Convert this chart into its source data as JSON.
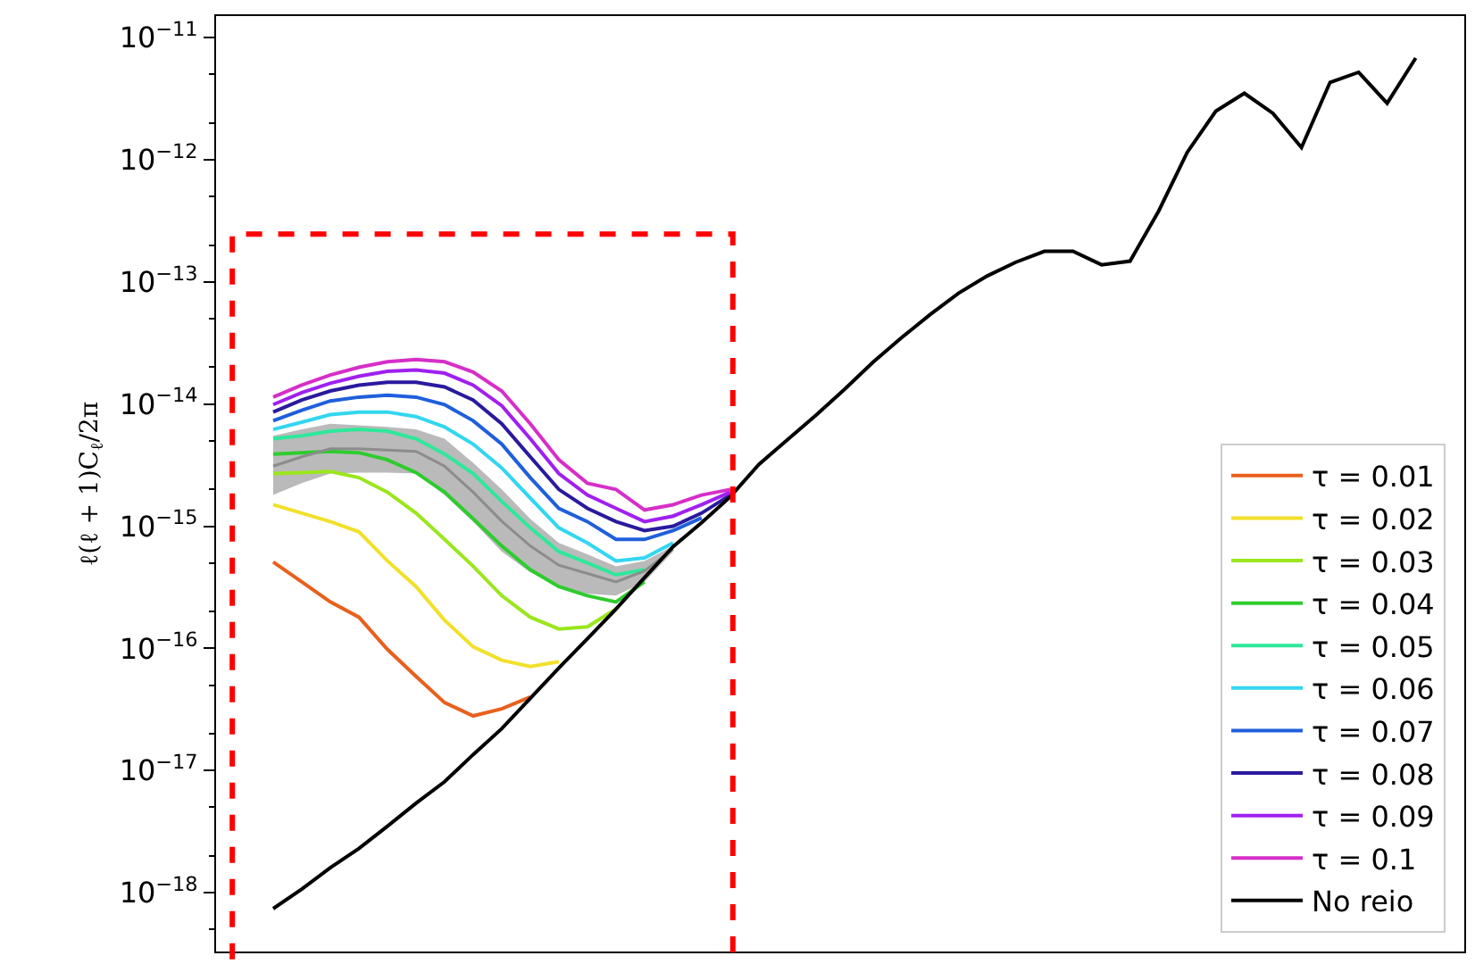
{
  "chart_data": {
    "type": "line",
    "ylabel": "ℓ(ℓ + 1)C$_{ℓ}$/2π",
    "log": "y",
    "legend": "bottom right",
    "tick_labels": "y",
    "categories": [
      null,
      null,
      null,
      null,
      null,
      null,
      null,
      null,
      null,
      null,
      null,
      null,
      null,
      null,
      null,
      null,
      null,
      null,
      null,
      null,
      null,
      null,
      null,
      null,
      null,
      null,
      null,
      null,
      null,
      null,
      null,
      null,
      null,
      null,
      null,
      null,
      null,
      null,
      null,
      null,
      null
    ],
    "ylim": [
      3.3e-19,
      1.5e-11
    ],
    "yticks": [
      {
        "value": 1e-18,
        "label": "10$^{−18}$"
      },
      {
        "value": 1e-17,
        "label": "10$^{−17}$"
      },
      {
        "value": 1e-16,
        "label": "10$^{−16}$"
      },
      {
        "value": 1e-15,
        "label": "10$^{−15}$"
      },
      {
        "value": 1e-14,
        "label": "10$^{−14}$"
      },
      {
        "value": 1e-13,
        "label": "10$^{−13}$"
      },
      {
        "value": 1e-12,
        "label": "10$^{−12}$"
      },
      {
        "value": 1e-11,
        "label": "10$^{−11}$"
      }
    ],
    "series": [
      {
        "color": "#8c8c8c",
        "values": [
          3.1e-15,
          3.7e-15,
          4.3e-15,
          4.3e-15,
          4.2e-15,
          4.1e-15,
          3.1e-15,
          1.9e-15,
          1.1e-15,
          6.9e-16,
          4.8e-16,
          4.1e-16,
          3.5e-16,
          4.3e-16,
          6.5e-16,
          null,
          null,
          null,
          null,
          null,
          null,
          null,
          null,
          null,
          null,
          null,
          null,
          null,
          null,
          null,
          null,
          null,
          null,
          null,
          null,
          null,
          null,
          null,
          null,
          null,
          null
        ],
        "lower": [
          1.8e-15,
          2.25e-15,
          2.7e-15,
          2.75e-15,
          2.75e-15,
          2.7e-15,
          1.8e-15,
          1.09e-15,
          6.2e-16,
          4.2e-16,
          3.2e-16,
          2.8e-16,
          2.7e-16,
          3.5e-16,
          6.2e-16,
          null,
          null,
          null,
          null,
          null,
          null,
          null,
          null,
          null,
          null,
          null,
          null,
          null,
          null,
          null,
          null,
          null,
          null,
          null,
          null,
          null,
          null,
          null,
          null,
          null,
          null
        ],
        "upper": [
          5.5e-15,
          6.2e-15,
          6.9e-15,
          6.7e-15,
          6.5e-15,
          6.2e-15,
          5.2e-15,
          3.3e-15,
          2e-15,
          1.15e-15,
          7.3e-16,
          5.9e-16,
          4.7e-16,
          5.2e-16,
          6.9e-16,
          null,
          null,
          null,
          null,
          null,
          null,
          null,
          null,
          null,
          null,
          null,
          null,
          null,
          null,
          null,
          null,
          null,
          null,
          null,
          null,
          null,
          null,
          null,
          null,
          null,
          null
        ]
      },
      {
        "name": "τ = 0.01",
        "color": "#e8601c",
        "values": [
          5.1e-16,
          3.5e-16,
          2.4e-16,
          1.8e-16,
          9.8e-17,
          5.9e-17,
          3.6e-17,
          2.8e-17,
          3.2e-17,
          4e-17,
          null,
          null,
          null,
          null,
          null,
          null,
          null,
          null,
          null,
          null,
          null,
          null,
          null,
          null,
          null,
          null,
          null,
          null,
          null,
          null,
          null,
          null,
          null,
          null,
          null,
          null,
          null,
          null,
          null,
          null,
          null
        ]
      },
      {
        "name": "τ = 0.02",
        "color": "#f2e02a",
        "values": [
          1.5e-15,
          1.28e-15,
          1.09e-15,
          9e-16,
          5.2e-16,
          3.2e-16,
          1.7e-16,
          1.03e-16,
          8e-17,
          7.1e-17,
          7.8e-17,
          null,
          null,
          null,
          null,
          null,
          null,
          null,
          null,
          null,
          null,
          null,
          null,
          null,
          null,
          null,
          null,
          null,
          null,
          null,
          null,
          null,
          null,
          null,
          null,
          null,
          null,
          null,
          null,
          null,
          null
        ]
      },
      {
        "name": "τ = 0.03",
        "color": "#9be61e",
        "values": [
          2.7e-15,
          2.75e-15,
          2.8e-15,
          2.5e-15,
          1.9e-15,
          1.28e-15,
          7.8e-16,
          4.7e-16,
          2.7e-16,
          1.8e-16,
          1.44e-16,
          1.5e-16,
          2.1e-16,
          null,
          null,
          null,
          null,
          null,
          null,
          null,
          null,
          null,
          null,
          null,
          null,
          null,
          null,
          null,
          null,
          null,
          null,
          null,
          null,
          null,
          null,
          null,
          null,
          null,
          null,
          null,
          null
        ]
      },
      {
        "name": "τ = 0.04",
        "color": "#2ecc2e",
        "values": [
          3.9e-15,
          4e-15,
          4.1e-15,
          4e-15,
          3.5e-15,
          2.75e-15,
          1.9e-15,
          1.15e-15,
          6.9e-16,
          4.4e-16,
          3.2e-16,
          2.7e-16,
          2.4e-16,
          3.5e-16,
          null,
          null,
          null,
          null,
          null,
          null,
          null,
          null,
          null,
          null,
          null,
          null,
          null,
          null,
          null,
          null,
          null,
          null,
          null,
          null,
          null,
          null,
          null,
          null,
          null,
          null,
          null
        ]
      },
      {
        "name": "τ = 0.05",
        "color": "#2ee89a",
        "values": [
          5.2e-15,
          5.5e-15,
          6e-15,
          6.2e-15,
          6e-15,
          5.2e-15,
          3.9e-15,
          2.7e-15,
          1.6e-15,
          9.7e-16,
          6.2e-16,
          5e-16,
          4e-16,
          4.4e-16,
          null,
          null,
          null,
          null,
          null,
          null,
          null,
          null,
          null,
          null,
          null,
          null,
          null,
          null,
          null,
          null,
          null,
          null,
          null,
          null,
          null,
          null,
          null,
          null,
          null,
          null,
          null
        ]
      },
      {
        "name": "τ = 0.06",
        "color": "#33d6f0",
        "values": [
          6.2e-15,
          7.1e-15,
          8.2e-15,
          8.6e-15,
          8.6e-15,
          7.9e-15,
          6.5e-15,
          4.7e-15,
          3e-15,
          1.7e-15,
          9.7e-16,
          7.3e-16,
          5.2e-16,
          5.5e-16,
          7.3e-16,
          null,
          null,
          null,
          null,
          null,
          null,
          null,
          null,
          null,
          null,
          null,
          null,
          null,
          null,
          null,
          null,
          null,
          null,
          null,
          null,
          null,
          null,
          null,
          null,
          null,
          null
        ]
      },
      {
        "name": "τ = 0.07",
        "color": "#1f5fdc",
        "values": [
          7.3e-15,
          8.9e-15,
          1.06e-14,
          1.14e-14,
          1.18e-14,
          1.14e-14,
          9.9e-15,
          7.3e-15,
          4.7e-15,
          2.5e-15,
          1.4e-15,
          1.09e-15,
          7.8e-16,
          7.8e-16,
          9.2e-16,
          1.17e-15,
          null,
          null,
          null,
          null,
          null,
          null,
          null,
          null,
          null,
          null,
          null,
          null,
          null,
          null,
          null,
          null,
          null,
          null,
          null,
          null,
          null,
          null,
          null,
          null,
          null
        ]
      },
      {
        "name": "τ = 0.08",
        "color": "#2a1a9e",
        "values": [
          8.6e-15,
          1.08e-14,
          1.28e-14,
          1.43e-14,
          1.51e-14,
          1.51e-14,
          1.38e-14,
          1.08e-14,
          6.9e-15,
          3.7e-15,
          2e-15,
          1.4e-15,
          1.09e-15,
          9.2e-16,
          1e-15,
          1.28e-15,
          1.8e-15,
          null,
          null,
          null,
          null,
          null,
          null,
          null,
          null,
          null,
          null,
          null,
          null,
          null,
          null,
          null,
          null,
          null,
          null,
          null,
          null,
          null,
          null,
          null,
          null
        ]
      },
      {
        "name": "τ = 0.09",
        "color": "#a020f0",
        "values": [
          9.9e-15,
          1.24e-14,
          1.48e-14,
          1.69e-14,
          1.85e-14,
          1.9e-14,
          1.79e-14,
          1.43e-14,
          9.7e-15,
          5.2e-15,
          2.7e-15,
          1.8e-15,
          1.4e-15,
          1.09e-15,
          1.21e-15,
          1.5e-15,
          1.9e-15,
          null,
          null,
          null,
          null,
          null,
          null,
          null,
          null,
          null,
          null,
          null,
          null,
          null,
          null,
          null,
          null,
          null,
          null,
          null,
          null,
          null,
          null,
          null,
          null
        ]
      },
      {
        "name": "τ = 0.1",
        "color": "#d62fc8",
        "values": [
          1.14e-14,
          1.43e-14,
          1.73e-14,
          2e-14,
          2.22e-14,
          2.32e-14,
          2.22e-14,
          1.83e-14,
          1.28e-14,
          6.9e-15,
          3.5e-15,
          2.25e-15,
          2e-15,
          1.36e-15,
          1.5e-15,
          1.8e-15,
          2e-15,
          null,
          null,
          null,
          null,
          null,
          null,
          null,
          null,
          null,
          null,
          null,
          null,
          null,
          null,
          null,
          null,
          null,
          null,
          null,
          null,
          null,
          null,
          null,
          null
        ]
      },
      {
        "name": "No reio",
        "color": "#000000",
        "values": [
          7.4e-19,
          1.07e-18,
          1.6e-18,
          2.3e-18,
          3.5e-18,
          5.4e-18,
          8.1e-18,
          1.35e-17,
          2.2e-17,
          3.9e-17,
          6.9e-17,
          1.2e-16,
          2.1e-16,
          3.8e-16,
          6.8e-16,
          1.07e-15,
          1.74e-15,
          3.2e-15,
          5.1e-15,
          8.1e-15,
          1.32e-14,
          2.2e-14,
          3.5e-14,
          5.4e-14,
          8.1e-14,
          1.12e-13,
          1.45e-13,
          1.78e-13,
          1.78e-13,
          1.38e-13,
          1.48e-13,
          3.8e-13,
          1.15e-12,
          2.5e-12,
          3.5e-12,
          2.4e-12,
          1.26e-12,
          4.3e-12,
          5.2e-12,
          2.9e-12,
          6.8e-12
        ]
      }
    ]
  }
}
